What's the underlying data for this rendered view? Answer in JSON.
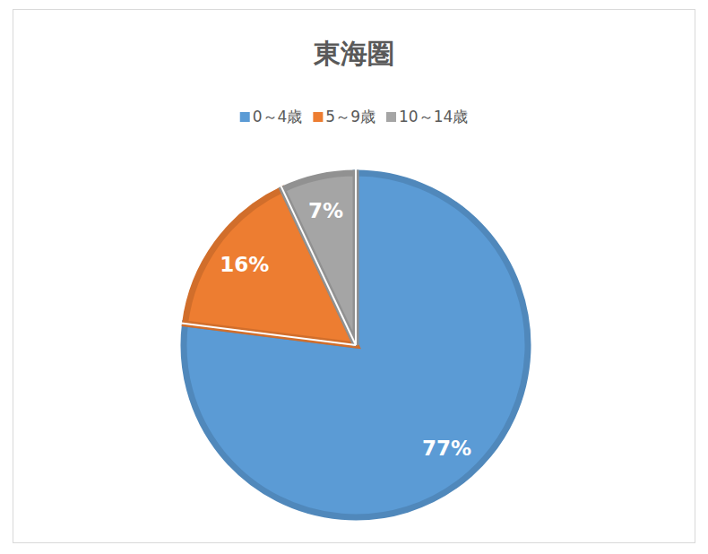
{
  "chart_data": {
    "type": "pie",
    "title": "東海圏",
    "categories": [
      "0～4歳",
      "5～9歳",
      "10～14歳"
    ],
    "values": [
      77,
      16,
      7
    ],
    "value_labels": [
      "77%",
      "16%",
      "7%"
    ],
    "colors": [
      "#5b9bd5",
      "#ed7d31",
      "#a5a5a5"
    ],
    "legend": "top",
    "data_labels": true
  }
}
